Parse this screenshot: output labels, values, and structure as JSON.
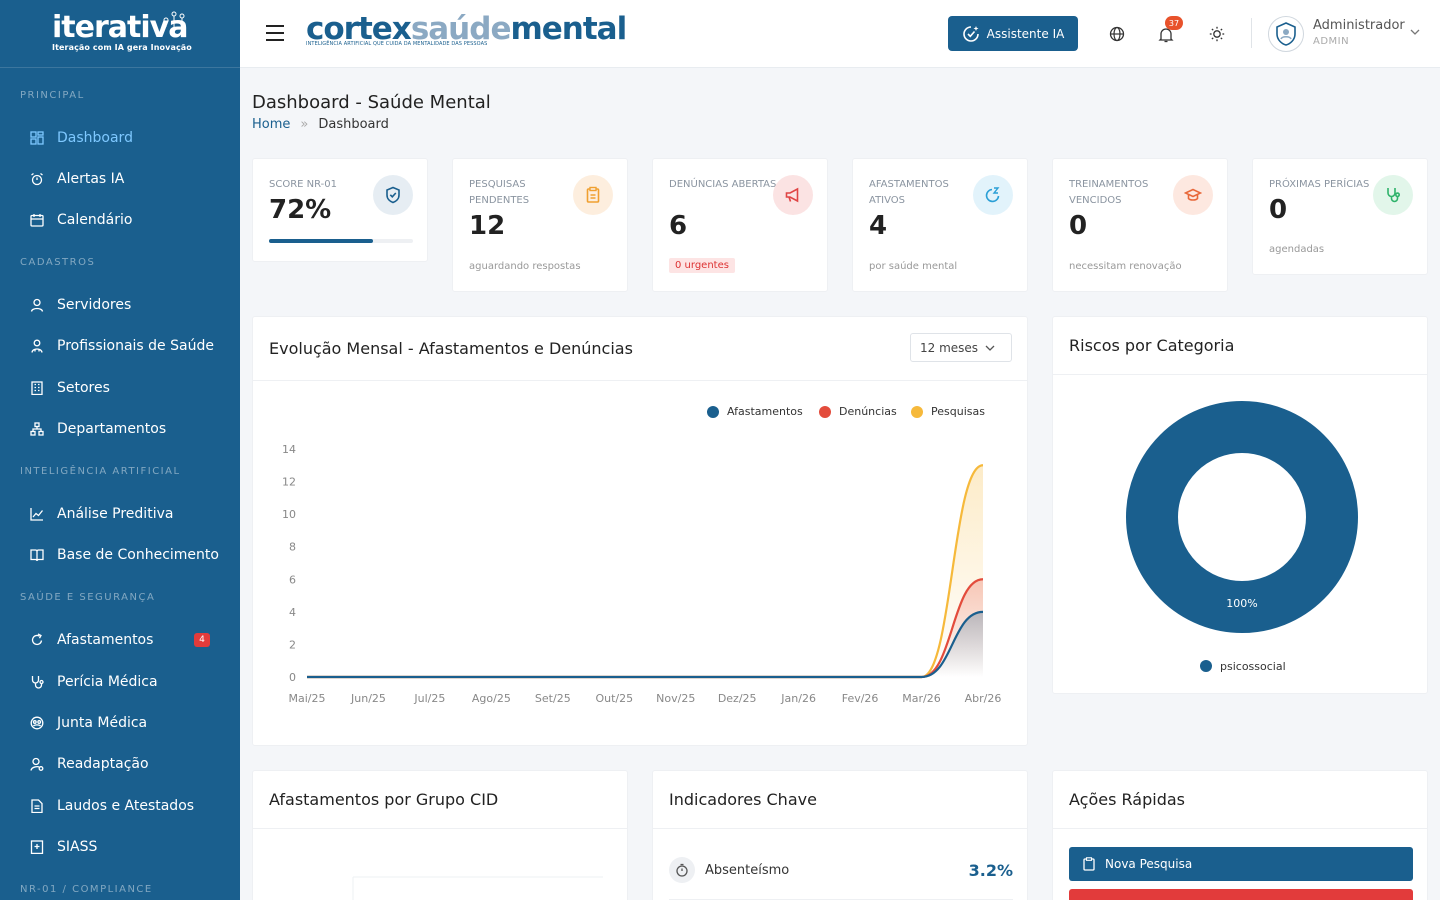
{
  "logo": {
    "name": "iterativa",
    "tagline": "Iteração com IA gera Inovação"
  },
  "brand": {
    "part1": "cortex",
    "part2": "saúde",
    "part3": "mental",
    "tagline": "INTELIGÊNCIA ARTIFICIAL QUE CUIDA DA MENTALIDADE DAS PESSOAS"
  },
  "sidebar": {
    "sections": [
      {
        "title": "PRINCIPAL",
        "items": [
          {
            "label": "Dashboard",
            "icon": "dashboard-icon",
            "active": true
          },
          {
            "label": "Alertas IA",
            "icon": "alarm-icon"
          },
          {
            "label": "Calendário",
            "icon": "calendar-icon"
          }
        ]
      },
      {
        "title": "CADASTROS",
        "items": [
          {
            "label": "Servidores",
            "icon": "user-icon"
          },
          {
            "label": "Profissionais de Saúde",
            "icon": "doctor-icon"
          },
          {
            "label": "Setores",
            "icon": "building-icon"
          },
          {
            "label": "Departamentos",
            "icon": "org-icon"
          }
        ]
      },
      {
        "title": "INTELIGÊNCIA ARTIFICIAL",
        "items": [
          {
            "label": "Análise Preditiva",
            "icon": "chart-line-icon"
          },
          {
            "label": "Base de Conhecimento",
            "icon": "book-icon"
          }
        ]
      },
      {
        "title": "SAÚDE E SEGURANÇA",
        "items": [
          {
            "label": "Afastamentos",
            "icon": "refresh-icon",
            "badge": "4"
          },
          {
            "label": "Perícia Médica",
            "icon": "stethoscope-icon"
          },
          {
            "label": "Junta Médica",
            "icon": "group-icon"
          },
          {
            "label": "Readaptação",
            "icon": "user-cog-icon"
          },
          {
            "label": "Laudos e Atestados",
            "icon": "document-icon"
          },
          {
            "label": "SIASS",
            "icon": "hospital-icon"
          }
        ]
      },
      {
        "title": "NR-01 / COMPLIANCE",
        "items": []
      }
    ]
  },
  "topbar": {
    "ia_button": "Assistente IA",
    "notifications_count": "37",
    "user_name": "Administrador",
    "user_role": "ADMIN"
  },
  "page": {
    "title": "Dashboard - Saúde Mental",
    "breadcrumb_home": "Home",
    "breadcrumb_current": "Dashboard"
  },
  "stats": [
    {
      "label": "SCORE NR-01",
      "value": "72%",
      "progress": 0.72,
      "icon": "shield-check-icon",
      "icon_color": "#1a5f8e",
      "icon_bg": "#e6edf3"
    },
    {
      "label": "PESQUISAS PENDENTES",
      "value": "12",
      "foot": "aguardando respostas",
      "icon": "clipboard-icon",
      "icon_color": "#f0a030",
      "icon_bg": "#fdeede"
    },
    {
      "label": "DENÚNCIAS ABERTAS",
      "value": "6",
      "urgent": "0 urgentes",
      "icon": "megaphone-icon",
      "icon_color": "#e04545",
      "icon_bg": "#fbe3e3"
    },
    {
      "label": "AFASTAMENTOS ATIVOS",
      "value": "4",
      "foot": "por saúde mental",
      "icon": "sleep-icon",
      "icon_color": "#2a9fd6",
      "icon_bg": "#e2f3fb"
    },
    {
      "label": "TREINAMENTOS VENCIDOS",
      "value": "0",
      "foot": "necessitam renovação",
      "icon": "graduation-icon",
      "icon_color": "#e8683a",
      "icon_bg": "#fde8e0"
    },
    {
      "label": "PRÓXIMAS PERÍCIAS",
      "value": "0",
      "foot": "agendadas",
      "icon": "stethoscope-icon",
      "icon_color": "#2fb36b",
      "icon_bg": "#e2f6ea"
    }
  ],
  "evolution_card": {
    "title": "Evolução Mensal - Afastamentos e Denúncias",
    "period": "12 meses"
  },
  "risk_card": {
    "title": "Riscos por Categoria"
  },
  "cid_card": {
    "title": "Afastamentos por Grupo CID"
  },
  "kpi_card": {
    "title": "Indicadores Chave",
    "items": [
      {
        "name": "Absenteísmo",
        "value": "3.2%",
        "icon": "timer-icon"
      }
    ]
  },
  "actions_card": {
    "title": "Ações Rápidas",
    "buttons": [
      {
        "label": "Nova Pesquisa",
        "color": "#1a5f8e",
        "icon": "clipboard-icon"
      },
      {
        "label": "",
        "color": "#e23b3b"
      }
    ]
  },
  "chart_data": [
    {
      "type": "area",
      "categories": [
        "Mai/25",
        "Jun/25",
        "Jul/25",
        "Ago/25",
        "Set/25",
        "Out/25",
        "Nov/25",
        "Dez/25",
        "Jan/26",
        "Fev/26",
        "Mar/26",
        "Abr/26"
      ],
      "series": [
        {
          "name": "Afastamentos",
          "color": "#1a5f8e",
          "values": [
            0,
            0,
            0,
            0,
            0,
            0,
            0,
            0,
            0,
            0,
            0,
            4
          ]
        },
        {
          "name": "Denúncias",
          "color": "#e34c3c",
          "values": [
            0,
            0,
            0,
            0,
            0,
            0,
            0,
            0,
            0,
            0,
            0,
            6
          ]
        },
        {
          "name": "Pesquisas",
          "color": "#f6b93b",
          "values": [
            0,
            0,
            0,
            0,
            0,
            0,
            0,
            0,
            0,
            0,
            0,
            13
          ]
        }
      ],
      "yticks": [
        0,
        2,
        4,
        6,
        8,
        10,
        12,
        14
      ],
      "ylim": [
        0,
        14
      ],
      "legend": "top-right"
    },
    {
      "type": "pie",
      "categories": [
        "psicossocial"
      ],
      "values": [
        100
      ],
      "labels": [
        "100%"
      ],
      "colors": [
        "#1a5f8e"
      ],
      "legend": "bottom"
    }
  ]
}
